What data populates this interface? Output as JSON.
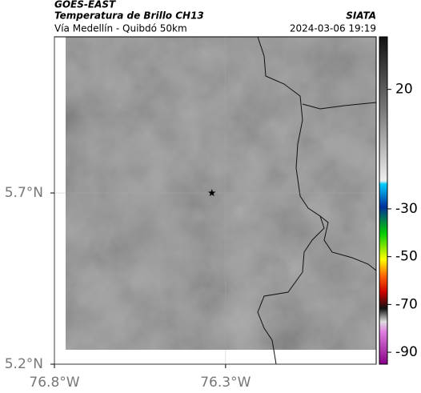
{
  "header": {
    "title": "GOES-EAST",
    "subtitle": "Temperatura de Brillo CH13",
    "route": "Vía Medellín - Quibdó 50km",
    "source": "SIATA",
    "timestamp": "2024-03-06 19:19"
  },
  "map": {
    "xlim": [
      -76.8,
      -75.86
    ],
    "ylim": [
      5.2,
      6.156
    ],
    "xticks": [
      {
        "value": -76.8,
        "label": "76.8°W"
      },
      {
        "value": -76.3,
        "label": "76.3°W"
      }
    ],
    "yticks": [
      {
        "value": 5.2,
        "label": "5.2°N"
      },
      {
        "value": 5.7,
        "label": "5.7°N"
      }
    ],
    "marker": {
      "lon": -76.34,
      "lat": 5.7
    }
  },
  "colorbar": {
    "lim": [
      42,
      -95
    ],
    "ticks": [
      20,
      -30,
      -50,
      -70,
      -90
    ]
  }
}
